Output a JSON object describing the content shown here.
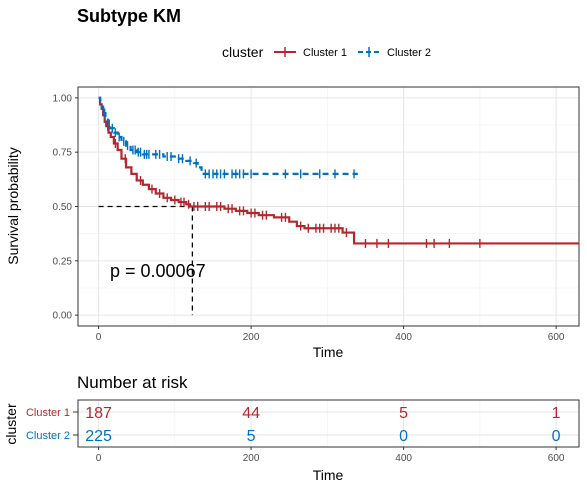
{
  "chart_data": [
    {
      "type": "line",
      "subtype": "kaplan-meier",
      "title": "Subtype KM",
      "xlabel": "Time",
      "ylabel": "Survival probability",
      "xlim": [
        -27,
        630
      ],
      "ylim": [
        -0.05,
        1.05
      ],
      "xticks": [
        "0",
        "200",
        "400",
        "600"
      ],
      "yticks": [
        "0.00",
        "0.25",
        "0.50",
        "0.75",
        "1.00"
      ],
      "grid": true,
      "legend": {
        "title": "cluster",
        "position": "top"
      },
      "annotation": "p = 0.00067",
      "median_line": {
        "y": 0.5,
        "x": 123
      },
      "series": [
        {
          "name": "Cluster 1",
          "color": "#b2282e",
          "style": "solid",
          "x": [
            0,
            2,
            4,
            6,
            8,
            10,
            13,
            16,
            20,
            25,
            30,
            36,
            43,
            50,
            58,
            66,
            75,
            85,
            95,
            105,
            115,
            120,
            135,
            150,
            165,
            180,
            195,
            210,
            230,
            250,
            260,
            270,
            280,
            300,
            320,
            330,
            335,
            600,
            630
          ],
          "y": [
            1.0,
            0.97,
            0.95,
            0.92,
            0.89,
            0.87,
            0.84,
            0.82,
            0.79,
            0.76,
            0.72,
            0.68,
            0.65,
            0.62,
            0.6,
            0.58,
            0.56,
            0.54,
            0.53,
            0.52,
            0.51,
            0.5,
            0.5,
            0.5,
            0.49,
            0.48,
            0.47,
            0.46,
            0.45,
            0.43,
            0.41,
            0.4,
            0.4,
            0.4,
            0.38,
            0.38,
            0.33,
            0.33,
            0.33
          ],
          "censor_x": [
            12,
            22,
            35,
            55,
            70,
            80,
            90,
            100,
            108,
            112,
            118,
            125,
            130,
            140,
            145,
            155,
            160,
            170,
            175,
            185,
            190,
            200,
            205,
            215,
            220,
            240,
            245,
            265,
            275,
            285,
            290,
            295,
            305,
            310,
            315,
            325,
            350,
            365,
            380,
            430,
            440,
            460,
            500
          ]
        },
        {
          "name": "Cluster 2",
          "color": "#0070c0",
          "style": "dashed",
          "x": [
            0,
            2,
            4,
            6,
            9,
            12,
            15,
            20,
            25,
            30,
            36,
            42,
            50,
            58,
            70,
            85,
            100,
            115,
            125,
            130,
            135,
            340
          ],
          "y": [
            1.0,
            0.98,
            0.96,
            0.93,
            0.9,
            0.88,
            0.86,
            0.84,
            0.82,
            0.8,
            0.78,
            0.76,
            0.75,
            0.74,
            0.74,
            0.73,
            0.72,
            0.71,
            0.7,
            0.68,
            0.65,
            0.65
          ],
          "censor_x": [
            8,
            14,
            18,
            22,
            27,
            33,
            38,
            45,
            48,
            52,
            55,
            60,
            63,
            66,
            75,
            80,
            90,
            95,
            105,
            110,
            120,
            128,
            140,
            145,
            150,
            155,
            160,
            165,
            175,
            180,
            185,
            190,
            200,
            245,
            265,
            290,
            310,
            335
          ]
        }
      ]
    },
    {
      "type": "table",
      "title": "Number at risk",
      "xlabel": "Time",
      "ylabel": "cluster",
      "time_points": [
        0,
        200,
        400,
        600
      ],
      "xticks": [
        "0",
        "200",
        "400",
        "600"
      ],
      "rows": [
        {
          "label": "Cluster 1",
          "color": "#b2282e",
          "values": [
            "187",
            "44",
            "5",
            "1"
          ]
        },
        {
          "label": "Cluster 2",
          "color": "#0070c0",
          "values": [
            "225",
            "5",
            "0",
            "0"
          ]
        }
      ]
    }
  ]
}
